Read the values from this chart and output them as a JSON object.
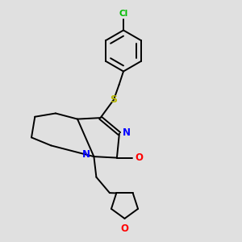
{
  "background_color": "#e0e0e0",
  "bond_color": "#000000",
  "atom_colors": {
    "N": "#0000ff",
    "O_carbonyl": "#ff0000",
    "O_ring": "#ff0000",
    "S": "#b8b800",
    "Cl": "#00bb00"
  },
  "figsize": [
    3.0,
    3.0
  ],
  "dpi": 100
}
